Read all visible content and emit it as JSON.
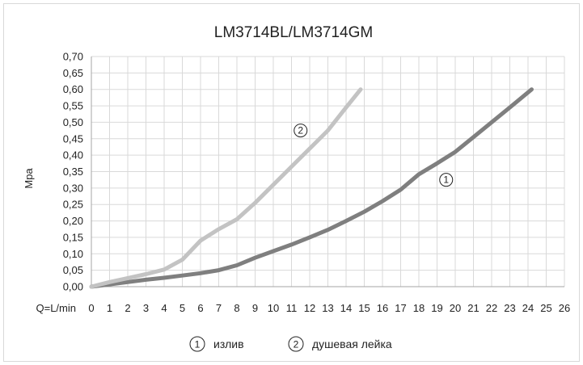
{
  "chart_data": {
    "type": "line",
    "title": "LM3714BL/LM3714GM",
    "ylabel": "Mpa",
    "xlabel": "Q=L/min",
    "xlim": [
      0,
      26
    ],
    "ylim": [
      0,
      0.7
    ],
    "x_ticks": [
      "0",
      "1",
      "2",
      "3",
      "4",
      "5",
      "6",
      "7",
      "8",
      "9",
      "10",
      "11",
      "12",
      "13",
      "14",
      "15",
      "16",
      "17",
      "18",
      "19",
      "20",
      "21",
      "22",
      "23",
      "24",
      "25",
      "26"
    ],
    "y_ticks": [
      "0,00",
      "0,05",
      "0,10",
      "0,15",
      "0,20",
      "0,25",
      "0,30",
      "0,35",
      "0,40",
      "0,45",
      "0,50",
      "0,55",
      "0,60",
      "0,65",
      "0,70"
    ],
    "grid": true,
    "legend_position": "bottom",
    "series": [
      {
        "marker": "1",
        "name": "излив",
        "color": "#7f7f7f",
        "points": [
          [
            0,
            0
          ],
          [
            1,
            0.007
          ],
          [
            2,
            0.014
          ],
          [
            3,
            0.021
          ],
          [
            4,
            0.027
          ],
          [
            5,
            0.034
          ],
          [
            6,
            0.041
          ],
          [
            7,
            0.05
          ],
          [
            8,
            0.065
          ],
          [
            9,
            0.088
          ],
          [
            10,
            0.108
          ],
          [
            11,
            0.128
          ],
          [
            12,
            0.15
          ],
          [
            13,
            0.173
          ],
          [
            14,
            0.2
          ],
          [
            15,
            0.228
          ],
          [
            16,
            0.26
          ],
          [
            17,
            0.295
          ],
          [
            18,
            0.342
          ],
          [
            19,
            0.375
          ],
          [
            20,
            0.41
          ],
          [
            21,
            0.455
          ],
          [
            22,
            0.5
          ],
          [
            23,
            0.545
          ],
          [
            24.2,
            0.6
          ]
        ]
      },
      {
        "marker": "2",
        "name": "душевая лейка",
        "color": "#c3c3c3",
        "points": [
          [
            0,
            0
          ],
          [
            1,
            0.014
          ],
          [
            2,
            0.026
          ],
          [
            3,
            0.038
          ],
          [
            4,
            0.052
          ],
          [
            5,
            0.082
          ],
          [
            6,
            0.14
          ],
          [
            7,
            0.175
          ],
          [
            8,
            0.205
          ],
          [
            9,
            0.255
          ],
          [
            10,
            0.31
          ],
          [
            11,
            0.365
          ],
          [
            12,
            0.42
          ],
          [
            13,
            0.475
          ],
          [
            14,
            0.545
          ],
          [
            14.8,
            0.6
          ]
        ]
      }
    ],
    "annotations": [
      {
        "text": "1",
        "series": 0
      },
      {
        "text": "2",
        "series": 1
      }
    ]
  }
}
